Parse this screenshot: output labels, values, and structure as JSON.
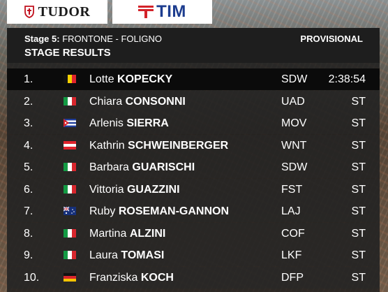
{
  "sponsors": {
    "tudor": "TUDOR",
    "tim": "TIM"
  },
  "header": {
    "stage_prefix": "Stage 5:",
    "stage_route": "FRONTONE - FOLIGNO",
    "title": "STAGE RESULTS",
    "status": "PROVISIONAL"
  },
  "results": [
    {
      "pos": "1.",
      "first": "Lotte",
      "last": "KOPECKY",
      "team": "SDW",
      "time": "2:38:54",
      "flag": "belgium-flag"
    },
    {
      "pos": "2.",
      "first": "Chiara",
      "last": "CONSONNI",
      "team": "UAD",
      "time": "ST",
      "flag": "italy-flag"
    },
    {
      "pos": "3.",
      "first": "Arlenis",
      "last": "SIERRA",
      "team": "MOV",
      "time": "ST",
      "flag": "cuba-flag"
    },
    {
      "pos": "4.",
      "first": "Kathrin",
      "last": "SCHWEINBERGER",
      "team": "WNT",
      "time": "ST",
      "flag": "austria-flag"
    },
    {
      "pos": "5.",
      "first": "Barbara",
      "last": "GUARISCHI",
      "team": "SDW",
      "time": "ST",
      "flag": "italy-flag"
    },
    {
      "pos": "6.",
      "first": "Vittoria",
      "last": "GUAZZINI",
      "team": "FST",
      "time": "ST",
      "flag": "italy-flag"
    },
    {
      "pos": "7.",
      "first": "Ruby",
      "last": "ROSEMAN-GANNON",
      "team": "LAJ",
      "time": "ST",
      "flag": "australia-flag"
    },
    {
      "pos": "8.",
      "first": "Martina",
      "last": "ALZINI",
      "team": "COF",
      "time": "ST",
      "flag": "italy-flag"
    },
    {
      "pos": "9.",
      "first": "Laura",
      "last": "TOMASI",
      "team": "LKF",
      "time": "ST",
      "flag": "italy-flag"
    },
    {
      "pos": "10.",
      "first": "Franziska",
      "last": "KOCH",
      "team": "DFP",
      "time": "ST",
      "flag": "germany-flag"
    }
  ]
}
